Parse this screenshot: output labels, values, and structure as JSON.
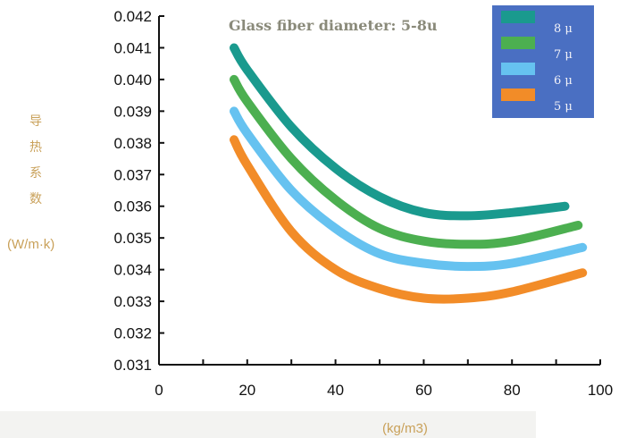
{
  "chart_data": {
    "type": "line",
    "title": "Glass fiber diameter: 5-8u",
    "ylabel_lines": [
      "导",
      "热",
      "系",
      "数"
    ],
    "ylabel_unit": "(W/m·k)",
    "xlabel": "(kg/m3)",
    "xlim": [
      0,
      100
    ],
    "ylim": [
      0.031,
      0.042
    ],
    "x_ticks": [
      "0",
      "20",
      "40",
      "60",
      "80",
      "100"
    ],
    "x_tick_values": [
      0,
      20,
      40,
      60,
      80,
      100
    ],
    "y_ticks": [
      "0.031",
      "0.032",
      "0.033",
      "0.034",
      "0.035",
      "0.036",
      "0.037",
      "0.038",
      "0.039",
      "0.040",
      "0.041",
      "0.042"
    ],
    "y_tick_values": [
      0.031,
      0.032,
      0.033,
      0.034,
      0.035,
      0.036,
      0.037,
      0.038,
      0.039,
      0.04,
      0.041,
      0.042
    ],
    "legend_position": "top-right",
    "series": [
      {
        "name": "8 μ",
        "color": "#1a9a8e",
        "x": [
          17,
          20,
          30,
          40,
          50,
          60,
          70,
          80,
          92
        ],
        "y": [
          0.041,
          0.0403,
          0.0385,
          0.0372,
          0.0363,
          0.0358,
          0.0357,
          0.0358,
          0.036
        ]
      },
      {
        "name": "7 μ",
        "color": "#4caf50",
        "x": [
          17,
          20,
          30,
          40,
          50,
          60,
          70,
          80,
          95
        ],
        "y": [
          0.04,
          0.0393,
          0.0375,
          0.0362,
          0.0353,
          0.0349,
          0.0348,
          0.0349,
          0.0354
        ]
      },
      {
        "name": "6 μ",
        "color": "#66c2f0",
        "x": [
          17,
          20,
          30,
          40,
          50,
          60,
          70,
          80,
          96
        ],
        "y": [
          0.039,
          0.0383,
          0.0365,
          0.0353,
          0.0345,
          0.0342,
          0.0341,
          0.0342,
          0.0347
        ]
      },
      {
        "name": "5 μ",
        "color": "#f28c28",
        "x": [
          17,
          20,
          30,
          40,
          50,
          60,
          70,
          80,
          96
        ],
        "y": [
          0.0381,
          0.0373,
          0.0352,
          0.034,
          0.0334,
          0.0331,
          0.0331,
          0.0333,
          0.0339
        ]
      }
    ]
  }
}
